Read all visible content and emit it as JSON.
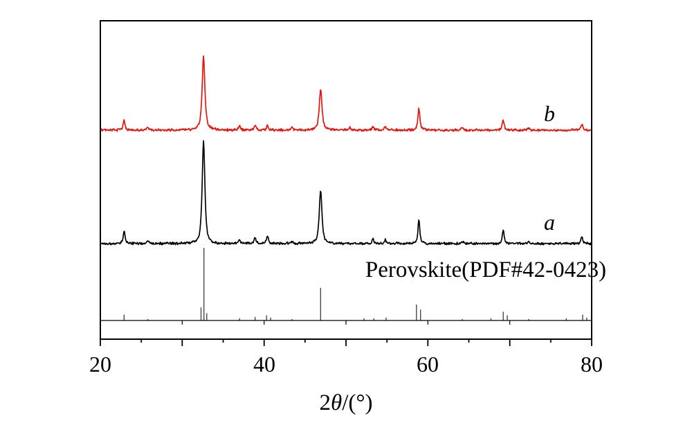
{
  "figure": {
    "description": "XRD patterns of two samples (a, b) compared with perovskite reference card",
    "background": "#ffffff"
  },
  "chart_data": {
    "type": "line",
    "title": "",
    "xlabel": "2θ/(°)",
    "xlabel_parts": {
      "pre": "2",
      "theta": "θ",
      "post": "/(°)"
    },
    "ylabel": "",
    "xlim": [
      20,
      80
    ],
    "x_tick_values": [
      20,
      40,
      60,
      80
    ],
    "x_tick_labels": [
      "20",
      "40",
      "60",
      "80"
    ],
    "x_minor_tick_step": 5,
    "grid": false,
    "legend_position": "none",
    "curve_labels": [
      {
        "text": "a",
        "series": "a",
        "italic": true,
        "color": "#000000"
      },
      {
        "text": "b",
        "series": "b",
        "italic": true,
        "color": "#000000"
      }
    ],
    "series": [
      {
        "name": "b",
        "color": "#e8130d",
        "offset_rank": "top",
        "peaks": [
          {
            "two_theta": 22.9,
            "i": 13
          },
          {
            "two_theta": 25.8,
            "i": 4
          },
          {
            "two_theta": 32.6,
            "i": 100
          },
          {
            "two_theta": 37.0,
            "i": 6
          },
          {
            "two_theta": 38.9,
            "i": 7
          },
          {
            "two_theta": 40.4,
            "i": 6
          },
          {
            "two_theta": 43.4,
            "i": 4
          },
          {
            "two_theta": 46.9,
            "i": 55
          },
          {
            "two_theta": 50.5,
            "i": 3
          },
          {
            "two_theta": 53.3,
            "i": 4
          },
          {
            "two_theta": 54.8,
            "i": 5
          },
          {
            "two_theta": 58.9,
            "i": 30
          },
          {
            "two_theta": 64.2,
            "i": 3
          },
          {
            "two_theta": 69.2,
            "i": 14
          },
          {
            "two_theta": 72.3,
            "i": 2
          },
          {
            "two_theta": 78.8,
            "i": 9
          }
        ]
      },
      {
        "name": "a",
        "color": "#000000",
        "offset_rank": "middle",
        "peaks": [
          {
            "two_theta": 22.9,
            "i": 12
          },
          {
            "two_theta": 25.8,
            "i": 3
          },
          {
            "two_theta": 32.6,
            "i": 100
          },
          {
            "two_theta": 37.0,
            "i": 4
          },
          {
            "two_theta": 38.9,
            "i": 6
          },
          {
            "two_theta": 40.4,
            "i": 7
          },
          {
            "two_theta": 43.4,
            "i": 2
          },
          {
            "two_theta": 46.9,
            "i": 52
          },
          {
            "two_theta": 53.3,
            "i": 4
          },
          {
            "two_theta": 54.8,
            "i": 4
          },
          {
            "two_theta": 58.9,
            "i": 23
          },
          {
            "two_theta": 64.2,
            "i": 2
          },
          {
            "two_theta": 69.2,
            "i": 13
          },
          {
            "two_theta": 72.3,
            "i": 2
          },
          {
            "two_theta": 78.8,
            "i": 7
          }
        ]
      }
    ],
    "reference": {
      "label": "Perovskite(PDF#42-0423)",
      "sticks": [
        {
          "two_theta": 22.9,
          "i": 8
        },
        {
          "two_theta": 25.8,
          "i": 2
        },
        {
          "two_theta": 32.3,
          "i": 18
        },
        {
          "two_theta": 32.65,
          "i": 100
        },
        {
          "two_theta": 33.0,
          "i": 10
        },
        {
          "two_theta": 37.0,
          "i": 3
        },
        {
          "two_theta": 38.9,
          "i": 5
        },
        {
          "two_theta": 40.3,
          "i": 7
        },
        {
          "two_theta": 40.8,
          "i": 4
        },
        {
          "two_theta": 43.4,
          "i": 2
        },
        {
          "two_theta": 46.9,
          "i": 45
        },
        {
          "two_theta": 52.2,
          "i": 3
        },
        {
          "two_theta": 53.4,
          "i": 3
        },
        {
          "two_theta": 54.9,
          "i": 4
        },
        {
          "two_theta": 58.6,
          "i": 22
        },
        {
          "two_theta": 59.1,
          "i": 15
        },
        {
          "two_theta": 64.2,
          "i": 2
        },
        {
          "two_theta": 67.7,
          "i": 3
        },
        {
          "two_theta": 69.2,
          "i": 12
        },
        {
          "two_theta": 69.7,
          "i": 7
        },
        {
          "two_theta": 72.3,
          "i": 2
        },
        {
          "two_theta": 76.9,
          "i": 3
        },
        {
          "two_theta": 78.9,
          "i": 8
        },
        {
          "two_theta": 79.4,
          "i": 4
        }
      ]
    }
  }
}
